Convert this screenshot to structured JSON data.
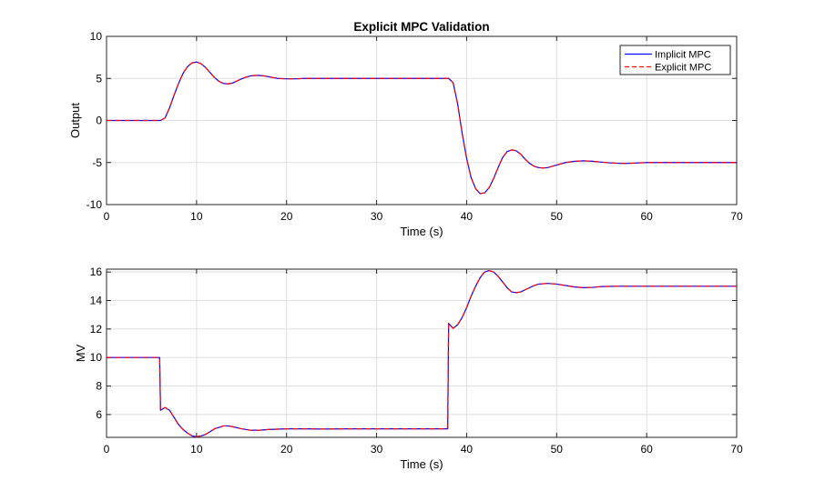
{
  "chart_data": [
    {
      "type": "line",
      "title": "Explicit MPC Validation",
      "xlabel": "Time (s)",
      "ylabel": "Output",
      "xlim": [
        0,
        70
      ],
      "ylim": [
        -10,
        10
      ],
      "xticks": [
        0,
        10,
        20,
        30,
        40,
        50,
        60,
        70
      ],
      "yticks": [
        -10,
        -5,
        0,
        5,
        10
      ],
      "grid": true,
      "legend": "top-right",
      "series": [
        {
          "name": "Implicit MPC",
          "color": "#0000ff",
          "style": "solid",
          "x": [
            0,
            6,
            6.5,
            7,
            7.5,
            8,
            8.5,
            9,
            9.5,
            10,
            10.5,
            11,
            11.5,
            12,
            12.5,
            13,
            13.5,
            14,
            14.5,
            15,
            15.5,
            16,
            16.5,
            17,
            17.5,
            18,
            18.5,
            19,
            20,
            21,
            22,
            24,
            26,
            30,
            35,
            38,
            38.5,
            39,
            39.5,
            40,
            40.5,
            41,
            41.5,
            42,
            42.5,
            43,
            43.5,
            44,
            44.5,
            45,
            45.5,
            46,
            46.5,
            47,
            47.5,
            48,
            48.5,
            49,
            49.5,
            50,
            51,
            52,
            53,
            54,
            55,
            56,
            57,
            58,
            60,
            62,
            65,
            70
          ],
          "y": [
            0,
            0,
            0.3,
            1.5,
            3.0,
            4.4,
            5.6,
            6.4,
            6.85,
            6.95,
            6.75,
            6.3,
            5.7,
            5.1,
            4.65,
            4.4,
            4.35,
            4.45,
            4.7,
            4.95,
            5.15,
            5.3,
            5.35,
            5.35,
            5.3,
            5.2,
            5.1,
            5.0,
            4.95,
            4.95,
            5.0,
            5.0,
            5.0,
            5.0,
            5.0,
            5.0,
            4.5,
            2.0,
            -1.5,
            -4.5,
            -6.8,
            -8.1,
            -8.7,
            -8.6,
            -8.0,
            -6.9,
            -5.6,
            -4.4,
            -3.7,
            -3.5,
            -3.6,
            -4.0,
            -4.6,
            -5.1,
            -5.45,
            -5.6,
            -5.65,
            -5.6,
            -5.45,
            -5.3,
            -5.0,
            -4.85,
            -4.8,
            -4.85,
            -4.95,
            -5.05,
            -5.1,
            -5.1,
            -5.0,
            -5.0,
            -5.0,
            -5.0
          ]
        },
        {
          "name": "Explicit MPC",
          "color": "#ff0000",
          "style": "dashed",
          "x": [
            0,
            6,
            6.5,
            7,
            7.5,
            8,
            8.5,
            9,
            9.5,
            10,
            10.5,
            11,
            11.5,
            12,
            12.5,
            13,
            13.5,
            14,
            14.5,
            15,
            15.5,
            16,
            16.5,
            17,
            17.5,
            18,
            18.5,
            19,
            20,
            21,
            22,
            24,
            26,
            30,
            35,
            38,
            38.5,
            39,
            39.5,
            40,
            40.5,
            41,
            41.5,
            42,
            42.5,
            43,
            43.5,
            44,
            44.5,
            45,
            45.5,
            46,
            46.5,
            47,
            47.5,
            48,
            48.5,
            49,
            49.5,
            50,
            51,
            52,
            53,
            54,
            55,
            56,
            57,
            58,
            60,
            62,
            65,
            70
          ],
          "y": [
            0,
            0,
            0.3,
            1.5,
            3.0,
            4.4,
            5.6,
            6.4,
            6.85,
            6.95,
            6.75,
            6.3,
            5.7,
            5.1,
            4.65,
            4.4,
            4.35,
            4.45,
            4.7,
            4.95,
            5.15,
            5.3,
            5.35,
            5.35,
            5.3,
            5.2,
            5.1,
            5.0,
            4.95,
            4.95,
            5.0,
            5.0,
            5.0,
            5.0,
            5.0,
            5.0,
            4.5,
            2.0,
            -1.5,
            -4.5,
            -6.8,
            -8.1,
            -8.7,
            -8.6,
            -8.0,
            -6.9,
            -5.6,
            -4.4,
            -3.7,
            -3.5,
            -3.6,
            -4.0,
            -4.6,
            -5.1,
            -5.45,
            -5.6,
            -5.65,
            -5.6,
            -5.45,
            -5.3,
            -5.0,
            -4.85,
            -4.8,
            -4.85,
            -4.95,
            -5.05,
            -5.1,
            -5.1,
            -5.0,
            -5.0,
            -5.0,
            -5.0
          ]
        }
      ]
    },
    {
      "type": "line",
      "title": "",
      "xlabel": "Time (s)",
      "ylabel": "MV",
      "xlim": [
        0,
        70
      ],
      "ylim": [
        4.4,
        16.2
      ],
      "xticks": [
        0,
        10,
        20,
        30,
        40,
        50,
        60,
        70
      ],
      "yticks": [
        6,
        8,
        10,
        12,
        14,
        16
      ],
      "grid": true,
      "legend": "none",
      "series": [
        {
          "name": "Implicit MPC",
          "color": "#0000ff",
          "style": "solid",
          "x": [
            0,
            5.9,
            6.0,
            6.5,
            7.0,
            7.5,
            8.0,
            8.5,
            9.0,
            9.5,
            10.0,
            10.5,
            11.0,
            11.5,
            12.0,
            12.5,
            13.0,
            13.5,
            14.0,
            15.0,
            16.0,
            17.0,
            18.0,
            20.0,
            22.0,
            24.0,
            27.0,
            30.0,
            35.0,
            37.9,
            38.0,
            38.5,
            39.0,
            39.5,
            40.0,
            40.5,
            41.0,
            41.5,
            42.0,
            42.5,
            43.0,
            43.5,
            44.0,
            44.5,
            45.0,
            45.5,
            46.0,
            46.5,
            47.0,
            47.5,
            48.0,
            49.0,
            50.0,
            51.0,
            52.0,
            53.0,
            54.0,
            55.0,
            57.0,
            60.0,
            65.0,
            70.0
          ],
          "y": [
            10,
            10,
            6.3,
            6.5,
            6.3,
            5.8,
            5.3,
            4.95,
            4.7,
            4.5,
            4.45,
            4.5,
            4.6,
            4.8,
            5.0,
            5.1,
            5.2,
            5.2,
            5.15,
            5.0,
            4.9,
            4.9,
            4.95,
            5.0,
            5.0,
            4.98,
            5.0,
            5.0,
            5.0,
            5.0,
            12.4,
            12.05,
            12.3,
            12.8,
            13.5,
            14.3,
            15.0,
            15.6,
            16.0,
            16.1,
            16.0,
            15.7,
            15.3,
            14.9,
            14.6,
            14.55,
            14.6,
            14.75,
            14.9,
            15.05,
            15.15,
            15.2,
            15.15,
            15.05,
            14.95,
            14.9,
            14.92,
            14.98,
            15.0,
            15.0,
            15.0,
            15.0
          ]
        },
        {
          "name": "Explicit MPC",
          "color": "#ff0000",
          "style": "dashed",
          "x": [
            0,
            5.9,
            6.0,
            6.5,
            7.0,
            7.5,
            8.0,
            8.5,
            9.0,
            9.5,
            10.0,
            10.5,
            11.0,
            11.5,
            12.0,
            12.5,
            13.0,
            13.5,
            14.0,
            15.0,
            16.0,
            17.0,
            18.0,
            20.0,
            22.0,
            24.0,
            27.0,
            30.0,
            35.0,
            37.9,
            38.0,
            38.5,
            39.0,
            39.5,
            40.0,
            40.5,
            41.0,
            41.5,
            42.0,
            42.5,
            43.0,
            43.5,
            44.0,
            44.5,
            45.0,
            45.5,
            46.0,
            46.5,
            47.0,
            47.5,
            48.0,
            49.0,
            50.0,
            51.0,
            52.0,
            53.0,
            54.0,
            55.0,
            57.0,
            60.0,
            65.0,
            70.0
          ],
          "y": [
            10,
            10,
            6.3,
            6.5,
            6.3,
            5.8,
            5.3,
            4.95,
            4.7,
            4.5,
            4.45,
            4.5,
            4.6,
            4.8,
            5.0,
            5.1,
            5.2,
            5.2,
            5.15,
            5.0,
            4.9,
            4.9,
            4.95,
            5.0,
            5.0,
            4.98,
            5.0,
            5.0,
            5.0,
            5.0,
            12.4,
            12.05,
            12.3,
            12.8,
            13.5,
            14.3,
            15.0,
            15.6,
            16.0,
            16.1,
            16.0,
            15.7,
            15.3,
            14.9,
            14.6,
            14.55,
            14.6,
            14.75,
            14.9,
            15.05,
            15.15,
            15.2,
            15.15,
            15.05,
            14.95,
            14.9,
            14.92,
            14.98,
            15.0,
            15.0,
            15.0,
            15.0
          ]
        }
      ]
    }
  ]
}
